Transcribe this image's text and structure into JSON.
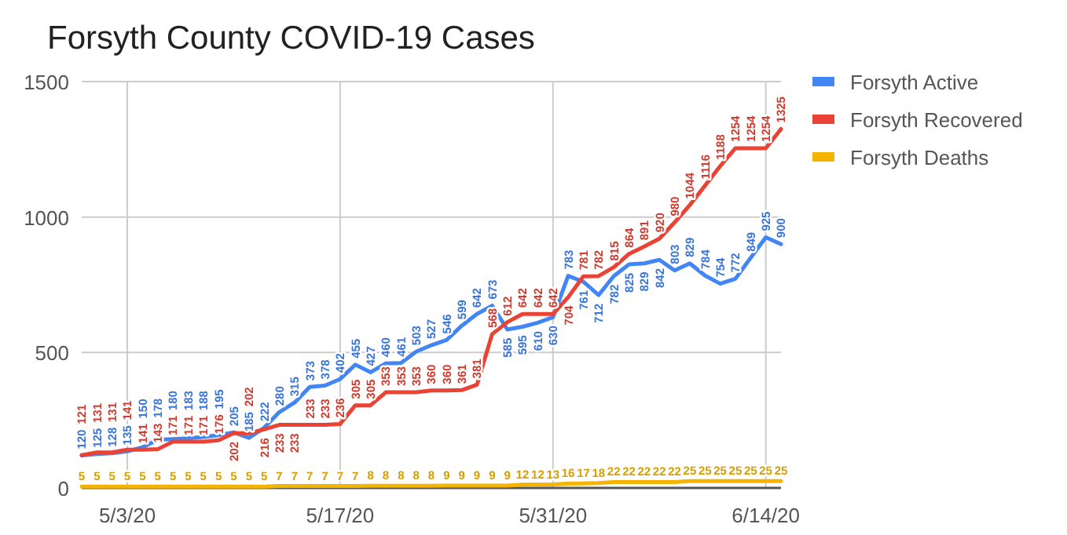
{
  "chart_data": {
    "type": "line",
    "title": "Forsyth County COVID-19 Cases",
    "x": [
      "--04-30",
      "--05-01",
      "--05-02",
      "--05-03",
      "--05-04",
      "--05-05",
      "--05-06",
      "--05-07",
      "--05-08",
      "--05-09",
      "--05-10",
      "--05-11",
      "--05-12",
      "--05-13",
      "--05-14",
      "--05-15",
      "--05-16",
      "--05-17",
      "--05-18",
      "--05-19",
      "--05-20",
      "--05-21",
      "--05-22",
      "--05-23",
      "--05-24",
      "--05-25",
      "--05-26",
      "--05-27",
      "--05-28",
      "--05-29",
      "--05-30",
      "--05-31",
      "--06-01",
      "--06-02",
      "--06-03",
      "--06-04",
      "--06-05",
      "--06-06",
      "--06-07",
      "--06-08",
      "--06-09",
      "--06-10",
      "--06-11",
      "--06-12",
      "--06-13",
      "--06-14",
      "--06-15"
    ],
    "series": [
      {
        "name": "Forsyth Active",
        "color": "#4285f4",
        "values": [
          120,
          125,
          128,
          135,
          150,
          178,
          180,
          183,
          188,
          195,
          205,
          185,
          222,
          280,
          315,
          373,
          378,
          402,
          455,
          427,
          460,
          461,
          503,
          527,
          546,
          599,
          642,
          673,
          585,
          595,
          610,
          630,
          783,
          761,
          712,
          782,
          825,
          829,
          842,
          803,
          829,
          784,
          754,
          772,
          849,
          925,
          900
        ]
      },
      {
        "name": "Forsyth Recovered",
        "color": "#ea4335",
        "values": [
          121,
          131,
          131,
          141,
          141,
          143,
          171,
          171,
          171,
          176,
          202,
          202,
          216,
          233,
          233,
          233,
          233,
          236,
          305,
          305,
          353,
          353,
          353,
          360,
          360,
          361,
          381,
          568,
          612,
          642,
          642,
          642,
          704,
          781,
          782,
          815,
          864,
          891,
          920,
          980,
          1044,
          1116,
          1188,
          1254,
          1254,
          1254,
          1325
        ]
      },
      {
        "name": "Forsyth Deaths",
        "color": "#f4b400",
        "values": [
          5,
          5,
          5,
          5,
          5,
          5,
          5,
          5,
          5,
          5,
          5,
          5,
          5,
          7,
          7,
          7,
          7,
          7,
          7,
          8,
          8,
          8,
          8,
          8,
          9,
          9,
          9,
          9,
          9,
          12,
          12,
          13,
          16,
          17,
          18,
          22,
          22,
          22,
          22,
          22,
          25,
          25,
          25,
          25,
          25,
          25,
          25
        ]
      }
    ],
    "xlim": [
      "--04-30",
      "--06-15"
    ],
    "xticks": [
      {
        "value": "--05-03",
        "label": "5/3/20"
      },
      {
        "value": "--05-17",
        "label": "5/17/20"
      },
      {
        "value": "--05-31",
        "label": "5/31/20"
      },
      {
        "value": "--06-14",
        "label": "6/14/20"
      }
    ],
    "ylim": [
      0,
      1500
    ],
    "yticks": [
      0,
      500,
      1000,
      1500
    ],
    "grid": true,
    "legend": "right",
    "marker": "none",
    "line_style": "solid",
    "data_labels": true
  }
}
